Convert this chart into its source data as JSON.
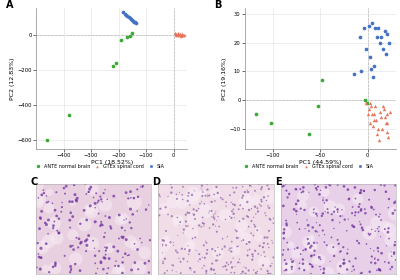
{
  "panel_A": {
    "label": "A",
    "xlabel": "PC1 (18.52%)",
    "ylabel": "PC2 (12.83%)",
    "xlim": [
      -500,
      50
    ],
    "ylim": [
      -650,
      150
    ],
    "xticks": [
      -400,
      -300,
      -200,
      -100,
      0
    ],
    "yticks": [
      -600,
      -400,
      -200,
      0
    ],
    "green_points": [
      [
        -460,
        -600
      ],
      [
        -380,
        -460
      ],
      [
        -220,
        -180
      ],
      [
        -210,
        -160
      ],
      [
        -190,
        -30
      ],
      [
        -170,
        -15
      ],
      [
        -160,
        -5
      ],
      [
        -150,
        8
      ]
    ],
    "blue_points": [
      [
        -185,
        130
      ],
      [
        -178,
        118
      ],
      [
        -172,
        110
      ],
      [
        -168,
        105
      ],
      [
        -163,
        100
      ],
      [
        -158,
        95
      ],
      [
        -154,
        90
      ],
      [
        -150,
        85
      ],
      [
        -147,
        80
      ],
      [
        -144,
        75
      ],
      [
        -140,
        70
      ],
      [
        -138,
        65
      ]
    ],
    "red_points": [
      [
        5,
        8
      ],
      [
        8,
        4
      ],
      [
        10,
        0
      ],
      [
        12,
        -4
      ],
      [
        15,
        7
      ],
      [
        18,
        2
      ],
      [
        20,
        -2
      ],
      [
        23,
        5
      ],
      [
        26,
        -1
      ],
      [
        29,
        -6
      ],
      [
        32,
        4
      ],
      [
        35,
        1
      ],
      [
        38,
        -3
      ]
    ]
  },
  "panel_B": {
    "label": "B",
    "xlabel": "PC1 (44.59%)",
    "ylabel": "PC2 (19.16%)",
    "xlim": [
      -130,
      30
    ],
    "ylim": [
      -17,
      32
    ],
    "xticks": [
      -100,
      -50,
      0
    ],
    "yticks": [
      -10,
      0,
      10,
      20,
      30
    ],
    "green_points": [
      [
        -118,
        -5
      ],
      [
        -102,
        -8
      ],
      [
        -62,
        -12
      ],
      [
        -52,
        -2
      ],
      [
        -3,
        0
      ],
      [
        -1,
        -1
      ],
      [
        -48,
        7
      ]
    ],
    "blue_points": [
      [
        -8,
        22
      ],
      [
        -4,
        25
      ],
      [
        1,
        26
      ],
      [
        5,
        27
      ],
      [
        8,
        25
      ],
      [
        10,
        22
      ],
      [
        13,
        20
      ],
      [
        16,
        18
      ],
      [
        19,
        16
      ],
      [
        21,
        23
      ],
      [
        23,
        20
      ],
      [
        4,
        11
      ],
      [
        7,
        12
      ],
      [
        -7,
        10
      ],
      [
        -14,
        9
      ],
      [
        2,
        15
      ],
      [
        6,
        8
      ],
      [
        11,
        25
      ],
      [
        14,
        22
      ],
      [
        18,
        24
      ],
      [
        -2,
        18
      ]
    ],
    "red_points": [
      [
        4,
        -2
      ],
      [
        7,
        -5
      ],
      [
        9,
        -7
      ],
      [
        11,
        -10
      ],
      [
        14,
        -6
      ],
      [
        17,
        -3
      ],
      [
        19,
        -8
      ],
      [
        21,
        -11
      ],
      [
        24,
        -4
      ],
      [
        1,
        -3
      ],
      [
        -2,
        -1
      ],
      [
        3,
        -1
      ],
      [
        6,
        -9
      ],
      [
        8,
        -2
      ],
      [
        12,
        -14
      ],
      [
        15,
        -10
      ],
      [
        18,
        -6
      ],
      [
        21,
        -8
      ],
      [
        5,
        -5
      ],
      [
        10,
        -12
      ],
      [
        0,
        -5
      ],
      [
        3,
        -8
      ],
      [
        16,
        -2
      ],
      [
        22,
        -13
      ],
      [
        13,
        -4
      ],
      [
        7,
        -7
      ],
      [
        20,
        -5
      ]
    ]
  },
  "legend": {
    "green_label": "ANTE normal brain",
    "red_label": "GTEx spinal cord",
    "blue_label": "SIA",
    "green_color": "#3aaa35",
    "red_color": "#e8745a",
    "blue_color": "#4472c4"
  },
  "histology_panels": {
    "C": {
      "bg_color": "#e8d0e0",
      "dot_color": "#7030a0",
      "dot_size_range": [
        1,
        5
      ],
      "n_dots": 180,
      "seed": 10
    },
    "D": {
      "bg_color": "#f0dde8",
      "dot_color": "#9060a8",
      "dot_size_range": [
        0.5,
        3
      ],
      "n_dots": 300,
      "seed": 20
    },
    "E": {
      "bg_color": "#e8d0e8",
      "dot_color": "#7030a0",
      "dot_size_range": [
        0.5,
        4
      ],
      "n_dots": 250,
      "seed": 30
    }
  },
  "background_color": "#ffffff",
  "grid_color": "#e0e0e0",
  "dashed_line_color": "#888888"
}
